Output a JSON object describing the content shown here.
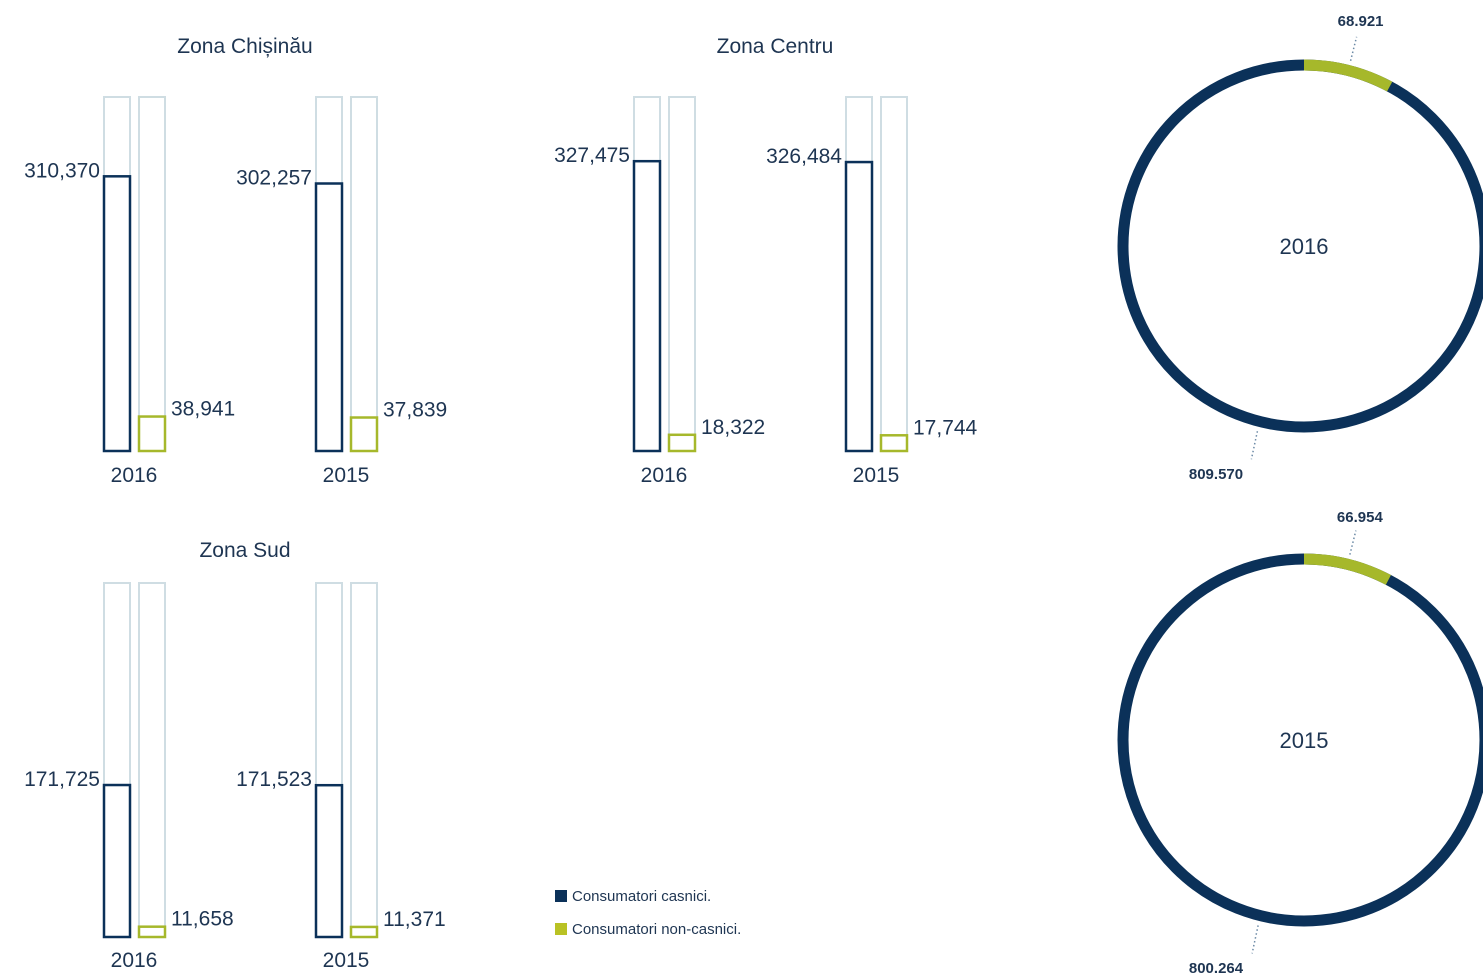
{
  "colors": {
    "casnici": "#0b3159",
    "noncasnici": "#a6b82b",
    "track": "#cfdde3",
    "text": "#1e3552",
    "leader": "#6c8aa6"
  },
  "legend": [
    {
      "label": "Consumatori casnici.",
      "color": "#0b3159"
    },
    {
      "label": "Consumatori non-casnici.",
      "color": "#b9c224"
    }
  ],
  "chart_data": [
    {
      "type": "bar",
      "title": "Zona Chișinău",
      "categories": [
        "2016",
        "2015"
      ],
      "series": [
        {
          "values": [
            310370,
            302257
          ],
          "labels": [
            "310,370",
            "302,257"
          ]
        },
        {
          "values": [
            38941,
            37839
          ],
          "labels": [
            "38,941",
            "37,839"
          ]
        }
      ],
      "ylim": [
        0,
        400000
      ]
    },
    {
      "type": "bar",
      "title": "Zona Centru",
      "categories": [
        "2016",
        "2015"
      ],
      "series": [
        {
          "values": [
            327475,
            326484
          ],
          "labels": [
            "327,475",
            "326,484"
          ]
        },
        {
          "values": [
            18322,
            17744
          ],
          "labels": [
            "18,322",
            "17,744"
          ]
        }
      ],
      "ylim": [
        0,
        400000
      ]
    },
    {
      "type": "bar",
      "title": "Zona Sud",
      "categories": [
        "2016",
        "2015"
      ],
      "series": [
        {
          "values": [
            171725,
            171523
          ],
          "labels": [
            "171,725",
            "171,523"
          ]
        },
        {
          "values": [
            11658,
            11371
          ],
          "labels": [
            "11,658",
            "11,371"
          ]
        }
      ],
      "ylim": [
        0,
        400000
      ]
    },
    {
      "type": "pie",
      "title": "2016",
      "values": [
        809570,
        68921
      ],
      "labels": [
        "809.570",
        "68.921"
      ]
    },
    {
      "type": "pie",
      "title": "2015",
      "values": [
        800264,
        66954
      ],
      "labels": [
        "800.264",
        "66.954"
      ]
    }
  ]
}
